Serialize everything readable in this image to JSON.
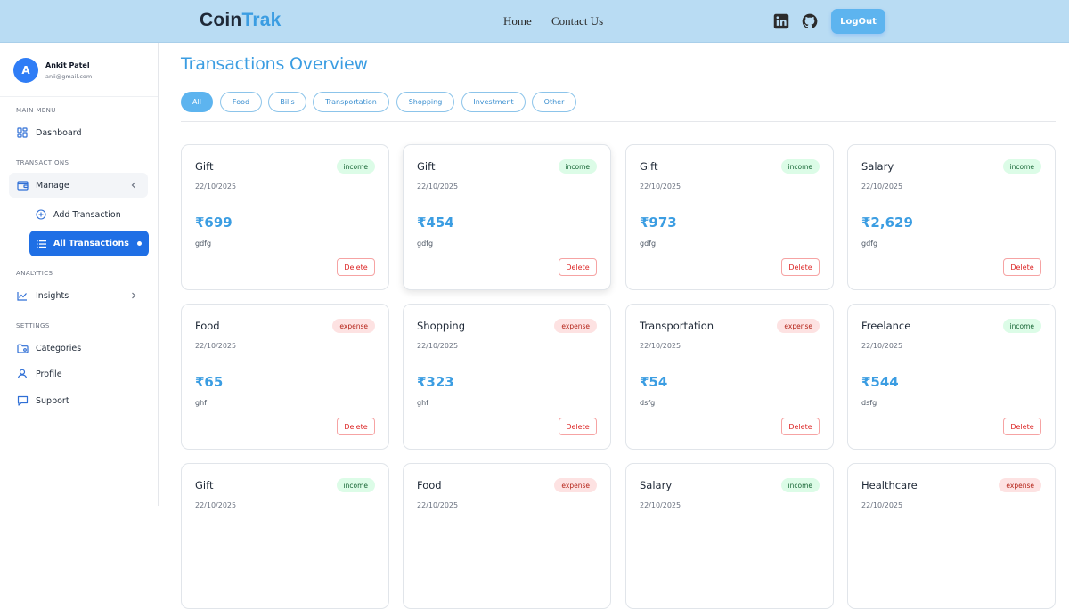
{
  "navbar": {
    "logo_primary": "Coin",
    "logo_accent": "Trak",
    "links": [
      "Home",
      "Contact Us"
    ],
    "social": [
      "linkedin-icon",
      "github-icon"
    ],
    "logout_label": "LogOut"
  },
  "sidebar": {
    "user": {
      "initial": "A",
      "name": "Ankit Patel",
      "email": "anii@gmail.com"
    },
    "sections": {
      "main_menu": "MAIN MENU",
      "transactions": "TRANSACTIONS",
      "analytics": "ANALYTICS",
      "settings": "SETTINGS"
    },
    "items": {
      "dashboard": "Dashboard",
      "manage": "Manage",
      "add_transaction": "Add Transaction",
      "all_transactions": "All Transactions",
      "insights": "Insights",
      "categories": "Categories",
      "profile": "Profile",
      "support": "Support"
    }
  },
  "main": {
    "title": "Transactions Overview",
    "filters": [
      "All",
      "Food",
      "Bills",
      "Transportation",
      "Shopping",
      "Investment",
      "Other"
    ],
    "active_filter": "All",
    "delete_label": "Delete",
    "cards": [
      {
        "title": "Gift",
        "type": "income",
        "date": "22/10/2025",
        "amount": "₹699",
        "desc": "gdfg"
      },
      {
        "title": "Gift",
        "type": "income",
        "date": "22/10/2025",
        "amount": "₹454",
        "desc": "gdfg"
      },
      {
        "title": "Gift",
        "type": "income",
        "date": "22/10/2025",
        "amount": "₹973",
        "desc": "gdfg"
      },
      {
        "title": "Salary",
        "type": "income",
        "date": "22/10/2025",
        "amount": "₹2,629",
        "desc": "gdfg"
      },
      {
        "title": "Food",
        "type": "expense",
        "date": "22/10/2025",
        "amount": "₹65",
        "desc": "ghf"
      },
      {
        "title": "Shopping",
        "type": "expense",
        "date": "22/10/2025",
        "amount": "₹323",
        "desc": "ghf"
      },
      {
        "title": "Transportation",
        "type": "expense",
        "date": "22/10/2025",
        "amount": "₹54",
        "desc": "dsfg"
      },
      {
        "title": "Freelance",
        "type": "income",
        "date": "22/10/2025",
        "amount": "₹544",
        "desc": "dsfg"
      },
      {
        "title": "Gift",
        "type": "income",
        "date": "22/10/2025",
        "amount": "",
        "desc": ""
      },
      {
        "title": "Food",
        "type": "expense",
        "date": "22/10/2025",
        "amount": "",
        "desc": ""
      },
      {
        "title": "Salary",
        "type": "income",
        "date": "22/10/2025",
        "amount": "",
        "desc": ""
      },
      {
        "title": "Healthcare",
        "type": "expense",
        "date": "22/10/2025",
        "amount": "",
        "desc": ""
      }
    ]
  },
  "colors": {
    "navbar_bg": "#b9dcf3",
    "accent": "#3b9de2",
    "active_nav": "#1f6fe5",
    "income_bg": "#dcfce7",
    "expense_bg": "#fde2e2",
    "delete": "#dc2626"
  }
}
